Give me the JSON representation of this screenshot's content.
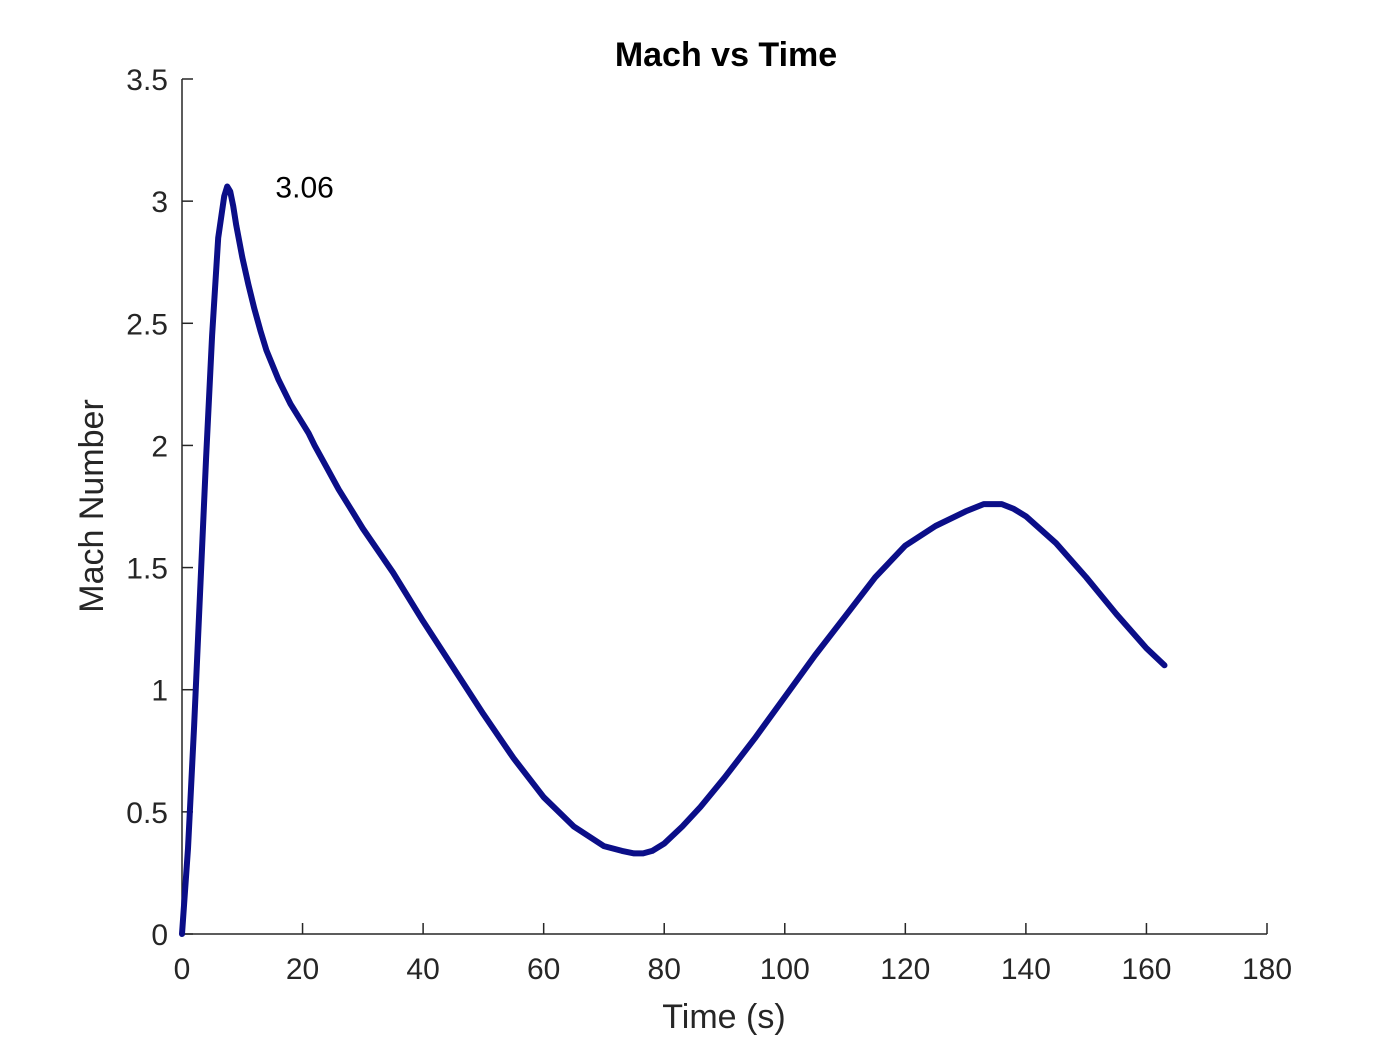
{
  "chart_data": {
    "type": "line",
    "title": "Mach vs Time",
    "xlabel": "Time (s)",
    "ylabel": "Mach Number",
    "xlim": [
      0,
      180
    ],
    "ylim": [
      0,
      3.5
    ],
    "xticks": [
      0,
      20,
      40,
      60,
      80,
      100,
      120,
      140,
      160,
      180
    ],
    "yticks": [
      0,
      0.5,
      1,
      1.5,
      2,
      2.5,
      3,
      3.5
    ],
    "xtick_labels": [
      "0",
      "20",
      "40",
      "60",
      "80",
      "100",
      "120",
      "140",
      "160",
      "180"
    ],
    "ytick_labels": [
      "0",
      "0.5",
      "1",
      "1.5",
      "2",
      "2.5",
      "3",
      "3.5"
    ],
    "grid": false,
    "series": [
      {
        "color": "#0b0e88",
        "x": [
          0,
          1,
          2,
          3,
          4,
          5,
          6,
          7,
          7.5,
          8,
          8.5,
          9,
          10,
          11,
          12,
          13,
          14,
          16,
          18,
          20,
          21,
          22,
          24,
          26,
          28,
          30,
          35,
          40,
          45,
          50,
          55,
          60,
          65,
          70,
          73,
          75,
          76.5,
          78,
          80,
          83,
          86,
          90,
          95,
          100,
          105,
          110,
          115,
          120,
          125,
          130,
          133,
          134.5,
          136,
          138,
          140,
          145,
          150,
          155,
          160,
          163
        ],
        "y": [
          0,
          0.35,
          0.85,
          1.4,
          1.95,
          2.45,
          2.85,
          3.02,
          3.06,
          3.04,
          2.98,
          2.9,
          2.77,
          2.66,
          2.56,
          2.47,
          2.39,
          2.27,
          2.17,
          2.09,
          2.05,
          2.0,
          1.91,
          1.82,
          1.74,
          1.66,
          1.48,
          1.28,
          1.09,
          0.9,
          0.72,
          0.56,
          0.44,
          0.36,
          0.34,
          0.33,
          0.33,
          0.34,
          0.37,
          0.44,
          0.52,
          0.64,
          0.8,
          0.97,
          1.14,
          1.3,
          1.46,
          1.59,
          1.67,
          1.73,
          1.76,
          1.76,
          1.76,
          1.74,
          1.71,
          1.6,
          1.46,
          1.31,
          1.17,
          1.1
        ]
      }
    ],
    "annotations": [
      {
        "text": "3.06",
        "x": 15.5,
        "y": 3.06
      }
    ]
  }
}
